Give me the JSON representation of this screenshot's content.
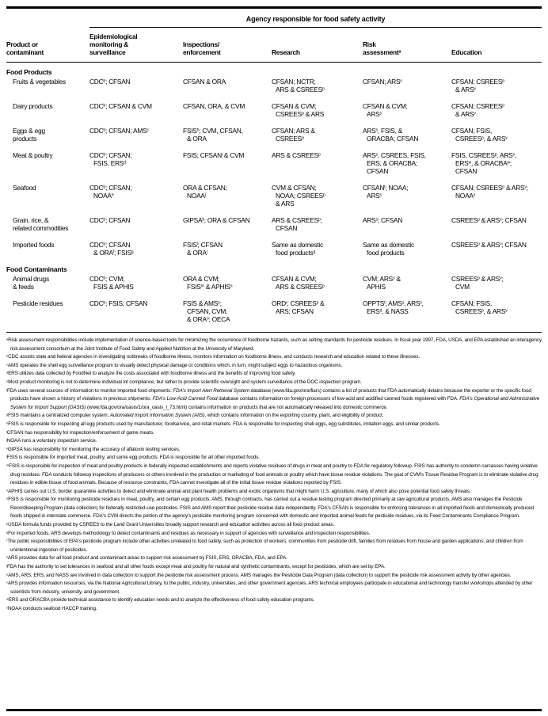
{
  "table": {
    "title": "Agency responsible for food safety activity",
    "columns": [
      "Product or\ncontaminant",
      "Epidemiological\nmonitoring &\nsurveillance",
      "Inspections/\nenforcement",
      "Research",
      "Risk\nassessment{a}",
      "Education"
    ],
    "sections": [
      {
        "heading": "Food Products",
        "rows": [
          [
            "Fruits & vegetables",
            "CDC{b}; CFSAN",
            "CFSAN & ORA",
            "CFSAN; NCTR;\nARS & CSREES{p}",
            "CFSAN; ARS{s}",
            "CFSAN; CSREES{p}\n& ARS{v}"
          ],
          [
            "Dairy products",
            "CDC{b}; CFSAN & CVM",
            "CFSAN, ORA, & CVM",
            "CFSAN & CVM;\nCSREES{p} & ARS",
            "CFSAN & CVM;\nARS{s}",
            "CFSAN; CSREES{p}\n& ARS{v}"
          ],
          [
            "Eggs & egg\nproducts",
            "CDC{b}; CFSAN; AMS{c}",
            "FSIS{h}; CVM, CFSAN,\n& ORA",
            "CFSAN; ARS &\nCSREES{p}",
            "ARS{s}, FSIS, &\nORACBA; CFSAN",
            "CFSAN; FSIS,\nCSREES{p}, & ARS{v}"
          ],
          [
            "Meat & poultry",
            "CDC{b}; CFSAN;\nFSIS, ERS{d}",
            "FSIS; CFSAN{i} & CVM",
            "ARS & CSREES{p}",
            "ARS{s}, CSREES, FSIS,\nERS, & ORACBA;\nCFSAN",
            "FSIS, CSREES{p}, ARS{v},\nERS{w}, & ORACBA{w};\nCFSAN"
          ],
          [
            "Seafood",
            "CDC{b}; CFSAN;\nNOAA{e}",
            "ORA & CFSAN;\nNOAA{j}",
            "CVM & CFSAN;\nNOAA; CSREES{p}\n& ARS",
            "CFSAN{t}; NOAA;\nARS{s}",
            "CFSAN; CSREES{p} & ARS{v};\nNOAA{x}"
          ],
          [
            "Grain, rice, &\nrelated commodities",
            "CDC{b}; CFSAN",
            "GIPSA{k}; ORA & CFSAN",
            "ARS & CSREES{p};\nCFSAN",
            "ARS{s}; CFSAN",
            "CSREES{p} & ARS{v}; CFSAN"
          ],
          [
            "Imported foods",
            "CDC{b}; CFSAN\n& ORA{f}; FSIS{g}",
            "FSIS{l}; CFSAN\n& ORA{l}",
            "Same as domestic\nfood products{q}",
            "Same as domestic\nfood products",
            "CSREES{p} & ARS{v}; CFSAN"
          ]
        ]
      },
      {
        "heading": "Food Contaminants",
        "rows": [
          [
            "Animal drugs\n& feeds",
            "CDC{b}; CVM;\nFSIS & APHIS",
            "ORA & CVM;\nFSIS{m} & APHIS{n}",
            "CFSAN & CVM;\nARS & CSREES{p}",
            "CVM; ARS{s} &\nAPHIS",
            "CSREES{p} & ARS{v};\nCVM"
          ],
          [
            "Pesticide residues",
            "CDC{b}; FSIS; CFSAN",
            "FSIS & AMS{o};\nCFSAN, CVM,\n& ORA{o}; OECA",
            "ORD{r}; CSREES{p} &\nARS; CFSAN",
            "OPPTS{t}; AMS{u}, ARS{s},\nERS{d}, & NASS",
            "CFSAN; FSIS,\nCSREES{p}, & ARS{v}"
          ]
        ]
      }
    ]
  },
  "footnotes": [
    {
      "marker": "a",
      "text": "Risk assessment responsibilities include implementation of science-based tools for minimizing the occurrence of foodborne hazards, such as setting standards for pesticide residues. In fiscal year 1997, FDA, USDA, and EPA established an interagency risk assessment consortium at the Joint Institute of Food Safety and Applied Nutrition at the University of Maryland."
    },
    {
      "marker": "b",
      "text": "CDC assists state and federal agencies in investigating outbreaks of foodborne illness, monitors information on foodborne illness, and conducts research and education related to these illnesses."
    },
    {
      "marker": "c",
      "text": "AMS operates the shell egg surveillance program to visually detect physical damage or conditions which, in turn, might subject eggs to hazardous organisms."
    },
    {
      "marker": "d",
      "text": "ERS utilizes data collected by FoodNet to analyze the costs associated with foodborne illness and the benefits of improving food safety."
    },
    {
      "marker": "e",
      "text": "Most product monitoring is not to determine individual lot compliance, but rather to provide scientific oversight and system surveillance of the DOC inspection program."
    },
    {
      "marker": "f",
      "text": "FDA uses several sources of information to monitor imported food shipments: *FDA's Import Alert Retrieval System* database (www.fda.gov/ora/fiars) contains a list of products that FDA automatically detains because the exporter or the specific food products have shown a history of violations in previous shipments. *FDA's Low-Acid Canned Food* database contains information on foreign processors of low-acid and acidified canned foods registered with FDA. *FDA's Operational and Administrative System for Import Support (OASIS)* (www.fda.gov/ora/oasis/1/ora_oasis_l_73.html) contains information on products that are not automatically released into domestic commerce."
    },
    {
      "marker": "g",
      "text": "FSIS maintains a centralized computer system, *Automated Import Information System (AIIS)*, which contains information on the exporting country, plant, and eligibility of product."
    },
    {
      "marker": "h",
      "text": "FSIS is responsible for inspecting all egg products used by manufacturer, foodservice, and retail markets. FDA is responsible for inspecting shell eggs, egg substitutes, imitation eggs, and similar products."
    },
    {
      "marker": "i",
      "text": "CFSAN has responsibility for inspection/enforcement of game meats."
    },
    {
      "marker": "j",
      "text": "NOAA runs a voluntary inspection service."
    },
    {
      "marker": "k",
      "text": "GIPSA has responsibility for monitoring the accuracy of aflatoxin testing services."
    },
    {
      "marker": "l",
      "text": "FSIS is responsible for imported meat, poultry, and some egg products. FDA is responsible for all other imported foods."
    },
    {
      "marker": "m",
      "text": "FSIS is responsible for inspection of meat and poultry products in federally inspected establishments and reports violative residues of drugs in meat and poultry to FDA for regulatory followup. FSIS has authority to condemn carcasses having violative drug residues. FDA conducts followup inspections of producers or others involved in the production or marketing of food animals or poultry which have tissue residue violations. The goal of CVM's Tissue Residue Program is to eliminate violative drug residues in edible tissue of food animals. Because of resource constraints, FDA cannot investigate all of the initial tissue residue violations reported by FSIS."
    },
    {
      "marker": "n",
      "text": "APHIS carries out U.S. border quarantine activities to detect and eliminate animal and plant health problems and exotic organisms that might harm U.S. agriculture, many of which also pose potential food safety threats."
    },
    {
      "marker": "o",
      "text": "FSIS is responsible for monitoring pesticide residues in meat, poultry, and certain egg products. AMS, through contracts, has carried out a residue testing program directed primarily at raw agricultural products. AMS also manages the Pesticide Recordkeeping Program (data collection) for federally restricted-use pesticides. FSIS and AMS report their pesticide residue data independently. FDA's CFSAN is responsible for enforcing tolerances in all imported foods and domestically produced foods shipped in interstate commerce. FDA's CVM directs the portion of the agency's pesticide monitoring program concerned with domestic and imported animal feeds for pesticide residues, via its Feed Contaminants Compliance Program."
    },
    {
      "marker": "p",
      "text": "USDA formula funds provided by CSREES to the Land Grant Universities broadly support research and education activities across all food product areas."
    },
    {
      "marker": "q",
      "text": "For imported foods, ARS develops methodology to detect contaminants and residues as necessary in support of agencies with surveillance and inspection responsibilities."
    },
    {
      "marker": "r",
      "text": "The public responsibilities of EPA's pesticide program include other activities unrelated to food safety, such as protection of workers, communities from pesticide drift, families from residues from house and garden applications, and children from unintentional ingestion of pesticides."
    },
    {
      "marker": "s",
      "text": "ARS provides data for all food product and contaminant areas to support risk assessment by FSIS, ERS, ORACBA, FDA, and EPA."
    },
    {
      "marker": "t",
      "text": "FDA has the authority to set tolerances in seafood and all other foods except meat and poultry for natural and synthetic contaminants, except for pesticides, which are set by EPA."
    },
    {
      "marker": "u",
      "text": "AMS, ARS, ERS, and NASS are involved in data collection to support the pesticide risk assessment process. AMS manages the Pesticide Data Program (data collection) to support the pesticide risk assessment activity by other agencies."
    },
    {
      "marker": "v",
      "text": "ARS provides information resources, via the National Agricultural Library, to the public, industry, universities, and other government agencies. ARS technical employees participate in educational and technology transfer workshops attended by other scientists from industry, university, and government."
    },
    {
      "marker": "w",
      "text": "ERS and ORACBA provide technical assistance to identify education needs and to analyze the effectiveness of food safety education programs."
    },
    {
      "marker": "x",
      "text": "NOAA conducts seafood HACCP training."
    }
  ]
}
